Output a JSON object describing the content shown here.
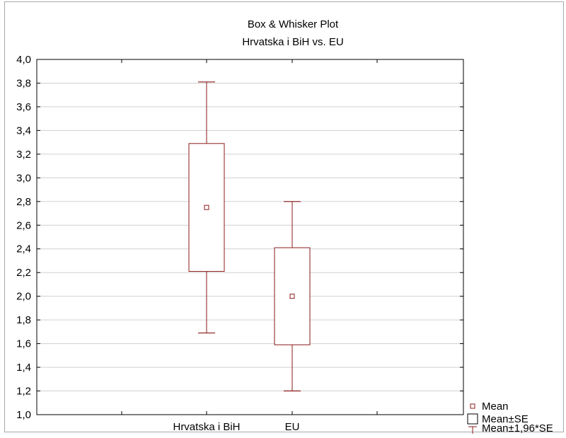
{
  "chart_data": {
    "type": "box",
    "title": "Box & Whisker Plot",
    "subtitle": "Hrvatska i BiH vs. EU",
    "xlabel": "",
    "ylabel": "",
    "ylim": [
      1.0,
      4.0
    ],
    "y_ticks": [
      "1,0",
      "1,2",
      "1,4",
      "1,6",
      "1,8",
      "2,0",
      "2,2",
      "2,4",
      "2,6",
      "2,8",
      "3,0",
      "3,2",
      "3,4",
      "3,6",
      "3,8",
      "4,0"
    ],
    "categories": [
      "Hrvatska i BiH",
      "EU"
    ],
    "series": [
      {
        "category": "Hrvatska i BiH",
        "mean": 2.75,
        "mean_minus_se": 2.21,
        "mean_plus_se": 3.29,
        "whisker_low": 1.69,
        "whisker_high": 3.81
      },
      {
        "category": "EU",
        "mean": 2.0,
        "mean_minus_se": 1.59,
        "mean_plus_se": 2.41,
        "whisker_low": 1.2,
        "whisker_high": 2.8
      }
    ],
    "grid": true,
    "legend_position": "bottom-right",
    "legend": [
      "Mean",
      "Mean±SE",
      "Mean±1,96*SE"
    ],
    "colors": {
      "box": "#8b1a1a",
      "grid": "#d0d0d0",
      "axis": "#000000"
    }
  }
}
